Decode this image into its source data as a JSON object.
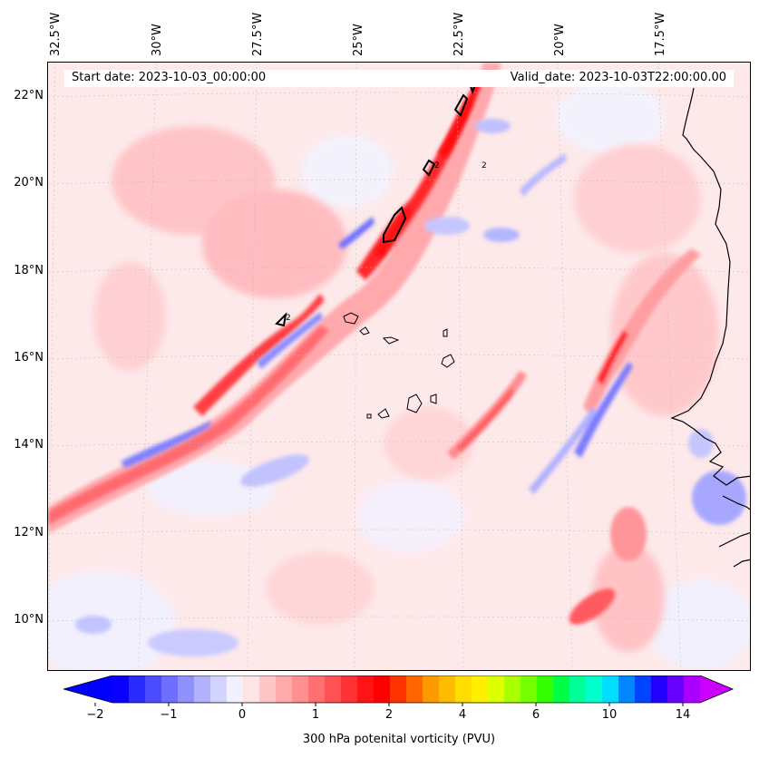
{
  "header": {
    "start_date": "Start date: 2023-10-03_00:00:00",
    "valid_date": "Valid_date: 2023-10-03T22:00:00.00"
  },
  "longitude_labels": [
    "32.5°W",
    "30°W",
    "27.5°W",
    "25°W",
    "22.5°W",
    "20°W",
    "17.5°W"
  ],
  "latitude_labels": [
    "22°N",
    "20°N",
    "18°N",
    "16°N",
    "14°N",
    "12°N",
    "10°N"
  ],
  "colorbar": {
    "title": "300 hPa potenital vorticity (PVU)",
    "tick_labels": [
      "−2",
      "−1",
      "0",
      "1",
      "2",
      "4",
      "6",
      "10",
      "14"
    ],
    "colors": [
      "#0a00ff",
      "#2a2bff",
      "#4c4dff",
      "#6e6eff",
      "#9090ff",
      "#b2b2ff",
      "#d3d3ff",
      "#f2f2ff",
      "#ffe4e6",
      "#ffc6c8",
      "#ffabad",
      "#ff8f91",
      "#ff7072",
      "#ff5254",
      "#ff3336",
      "#ff1416",
      "#ff0000",
      "#ff3300",
      "#ff6600",
      "#ff9900",
      "#ffbb00",
      "#ffdd00",
      "#fff000",
      "#ddff00",
      "#aaff00",
      "#77ff00",
      "#33ff00",
      "#00ff44",
      "#00ff99",
      "#00ffcc",
      "#00ddff",
      "#0088ff",
      "#0044ff",
      "#2200ff",
      "#6600ff",
      "#aa00ff"
    ],
    "under_color": "#0000ff",
    "over_color": "#cc00ff"
  },
  "map": {
    "background_color": "#fde9ea",
    "contour_label": "2"
  }
}
